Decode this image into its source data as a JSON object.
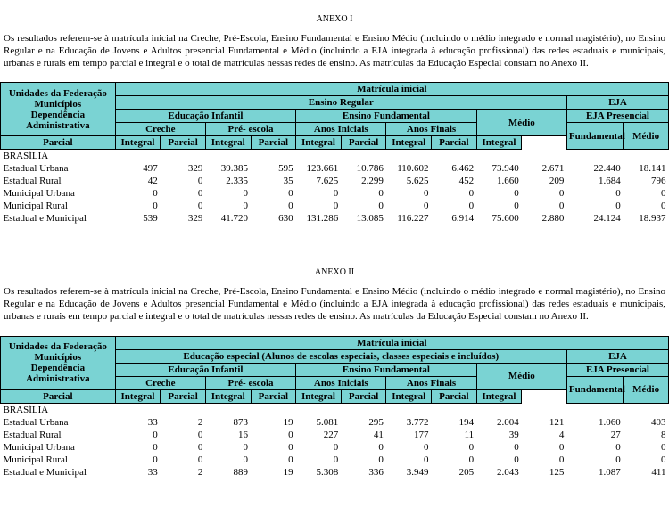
{
  "anexo1": {
    "title": "ANEXO I",
    "description": "Os resultados referem-se à matrícula inicial na Creche, Pré-Escola, Ensino Fundamental e Ensino Médio (incluindo o médio integrado e normal magistério), no Ensino Regular e na Educação de Jovens e Adultos presencial Fundamental e Médio (incluindo a EJA integrada à educação profissional) das redes estaduais e municipais, urbanas e rurais em tempo parcial e integral e o total de matrículas nessas redes de ensino. As matrículas da Educação Especial constam no Anexo II.",
    "headers": {
      "rowhead": "Unidades da Federação\nMunicípios\nDependência Administrativa",
      "matricula": "Matrícula inicial",
      "ensino_regular": "Ensino Regular",
      "eja": "EJA",
      "educ_infantil": "Educação Infantil",
      "ensino_fund": "Ensino Fundamental",
      "medio": "Médio",
      "eja_pres": "EJA Presencial",
      "creche": "Creche",
      "pre_escola": "Pré- escola",
      "anos_iniciais": "Anos Iniciais",
      "anos_finais": "Anos Finais",
      "fundamental": "Fundamental",
      "medio2": "Médio",
      "parcial": "Parcial",
      "integral": "Integral"
    },
    "region": "BRASÍLIA",
    "rows": [
      {
        "label": "Estadual Urbana",
        "v": [
          "497",
          "329",
          "39.385",
          "595",
          "123.661",
          "10.786",
          "110.602",
          "6.462",
          "73.940",
          "2.671",
          "22.440",
          "18.141"
        ]
      },
      {
        "label": "Estadual Rural",
        "v": [
          "42",
          "0",
          "2.335",
          "35",
          "7.625",
          "2.299",
          "5.625",
          "452",
          "1.660",
          "209",
          "1.684",
          "796"
        ]
      },
      {
        "label": "Municipal Urbana",
        "v": [
          "0",
          "0",
          "0",
          "0",
          "0",
          "0",
          "0",
          "0",
          "0",
          "0",
          "0",
          "0"
        ]
      },
      {
        "label": "Municipal Rural",
        "v": [
          "0",
          "0",
          "0",
          "0",
          "0",
          "0",
          "0",
          "0",
          "0",
          "0",
          "0",
          "0"
        ]
      },
      {
        "label": "Estadual e Municipal",
        "v": [
          "539",
          "329",
          "41.720",
          "630",
          "131.286",
          "13.085",
          "116.227",
          "6.914",
          "75.600",
          "2.880",
          "24.124",
          "18.937"
        ]
      }
    ]
  },
  "anexo2": {
    "title": "ANEXO II",
    "description": "Os resultados referem-se à matrícula inicial na Creche, Pré-Escola, Ensino Fundamental e Ensino Médio (incluindo o médio integrado e normal magistério), no Ensino Regular e na Educação de Jovens e Adultos presencial Fundamental e Médio (incluindo a EJA integrada à educação profissional) das redes estaduais e municipais, urbanas e rurais em tempo parcial e integral e o total de matrículas nessas redes de ensino. As matrículas da Educação Especial constam no Anexo II.",
    "headers": {
      "rowhead": "Unidades da Federação\nMunicípios\nDependência Administrativa",
      "matricula": "Matrícula inicial",
      "esp": "Educação especial (Alunos de escolas especiais, classes especiais e incluídos)",
      "eja": "EJA",
      "educ_infantil": "Educação Infantil",
      "ensino_fund": "Ensino Fundamental",
      "medio": "Médio",
      "eja_pres": "EJA Presencial",
      "creche": "Creche",
      "pre_escola": "Pré- escola",
      "anos_iniciais": "Anos Iniciais",
      "anos_finais": "Anos Finais",
      "fundamental": "Fundamental",
      "medio2": "Médio",
      "parcial": "Parcial",
      "integral": "Integral"
    },
    "region": "BRASÍLIA",
    "rows": [
      {
        "label": "Estadual Urbana",
        "v": [
          "33",
          "2",
          "873",
          "19",
          "5.081",
          "295",
          "3.772",
          "194",
          "2.004",
          "121",
          "1.060",
          "403"
        ]
      },
      {
        "label": "Estadual Rural",
        "v": [
          "0",
          "0",
          "16",
          "0",
          "227",
          "41",
          "177",
          "11",
          "39",
          "4",
          "27",
          "8"
        ]
      },
      {
        "label": "Municipal Urbana",
        "v": [
          "0",
          "0",
          "0",
          "0",
          "0",
          "0",
          "0",
          "0",
          "0",
          "0",
          "0",
          "0"
        ]
      },
      {
        "label": "Municipal Rural",
        "v": [
          "0",
          "0",
          "0",
          "0",
          "0",
          "0",
          "0",
          "0",
          "0",
          "0",
          "0",
          "0"
        ]
      },
      {
        "label": "Estadual e Municipal",
        "v": [
          "33",
          "2",
          "889",
          "19",
          "5.308",
          "336",
          "3.949",
          "205",
          "2.043",
          "125",
          "1.087",
          "411"
        ]
      }
    ]
  }
}
